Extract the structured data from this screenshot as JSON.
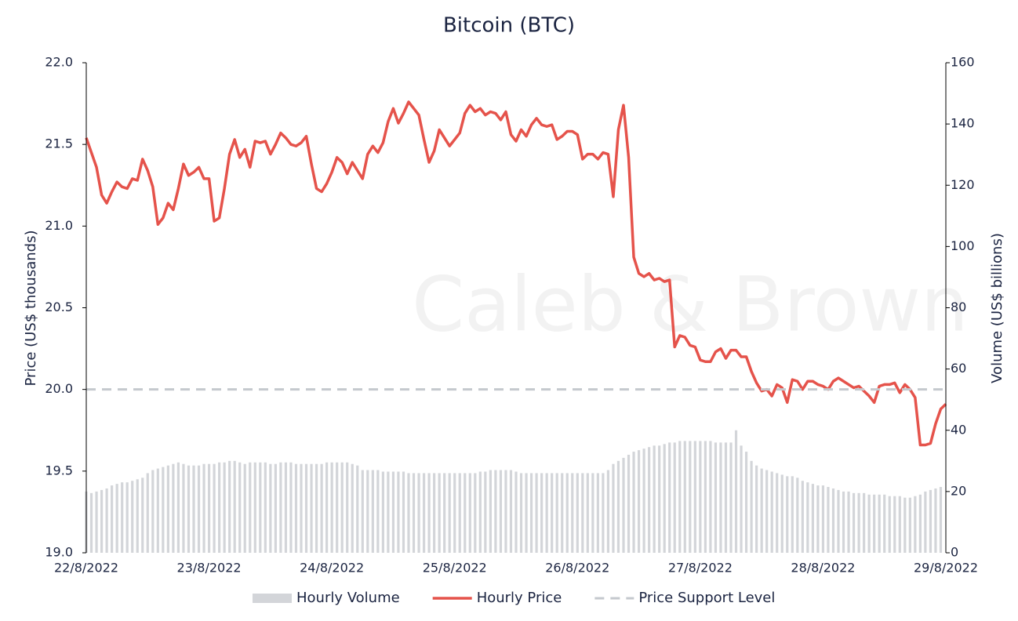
{
  "chart_data": {
    "type": "combo",
    "title": "Bitcoin (BTC)",
    "watermark": "Caleb & Brown",
    "ylabel": "Price (US$ thousands)",
    "y2label": "Volume (US$ billions)",
    "xlim": [
      0,
      168
    ],
    "xticks": [
      {
        "value": 0,
        "label": "22/8/2022"
      },
      {
        "value": 24,
        "label": "23/8/2022"
      },
      {
        "value": 48,
        "label": "24/8/2022"
      },
      {
        "value": 72,
        "label": "25/8/2022"
      },
      {
        "value": 96,
        "label": "26/8/2022"
      },
      {
        "value": 120,
        "label": "27/8/2022"
      },
      {
        "value": 144,
        "label": "28/8/2022"
      },
      {
        "value": 168,
        "label": "29/8/2022"
      }
    ],
    "ylim": [
      19,
      22
    ],
    "yticks": [
      {
        "value": 19,
        "label": "19.0"
      },
      {
        "value": 19.5,
        "label": "19.5"
      },
      {
        "value": 20,
        "label": "20.0"
      },
      {
        "value": 20.5,
        "label": "20.5"
      },
      {
        "value": 21,
        "label": "21.0"
      },
      {
        "value": 21.5,
        "label": "21.5"
      },
      {
        "value": 22,
        "label": "22.0"
      }
    ],
    "y2lim": [
      0,
      160
    ],
    "y2ticks": [
      0,
      20,
      40,
      60,
      80,
      100,
      120,
      140,
      160
    ],
    "series": [
      {
        "name": "Hourly Volume",
        "type": "bar",
        "axis": "y2",
        "color": "#d3d5d9",
        "values": [
          20,
          19.5,
          20,
          20.5,
          21,
          22,
          22.5,
          23,
          23,
          23.5,
          24,
          24.5,
          26,
          27,
          27.5,
          28,
          28.5,
          29,
          29.5,
          29,
          28.5,
          28.5,
          28.5,
          29,
          29,
          29,
          29.5,
          29.5,
          30,
          30,
          29.5,
          29,
          29.5,
          29.5,
          29.5,
          29.5,
          29,
          29,
          29.5,
          29.5,
          29.5,
          29,
          29,
          29,
          29,
          29,
          29,
          29.5,
          29.5,
          29.5,
          29.5,
          29.5,
          29,
          28.5,
          27,
          27,
          27,
          27,
          26.5,
          26.5,
          26.5,
          26.5,
          26.5,
          26,
          26,
          26,
          26,
          26,
          26,
          26,
          26,
          26,
          26,
          26,
          26,
          26,
          26,
          26.5,
          26.5,
          27,
          27,
          27,
          27,
          27,
          26.5,
          26,
          26,
          26,
          26,
          26,
          26,
          26,
          26,
          26,
          26,
          26,
          26,
          26,
          26,
          26,
          26,
          26,
          27,
          29,
          30,
          31,
          32,
          33,
          33.5,
          34,
          34.5,
          35,
          35,
          35.5,
          36,
          36,
          36.5,
          36.5,
          36.5,
          36.5,
          36.5,
          36.5,
          36.5,
          36,
          36,
          36,
          36,
          40,
          35,
          33,
          30,
          28.5,
          27.5,
          27,
          26.5,
          26,
          25.5,
          25,
          25,
          24.5,
          23.5,
          23,
          22.5,
          22,
          22,
          21.5,
          21,
          20.5,
          20,
          20,
          19.5,
          19.5,
          19.5,
          19,
          19,
          19,
          19,
          18.5,
          18.5,
          18.5,
          18,
          18,
          18.5,
          19,
          20,
          20.5,
          21,
          21.5
        ]
      },
      {
        "name": "Hourly Price",
        "type": "line",
        "color": "#e5534b",
        "values": [
          21.54,
          21.45,
          21.36,
          21.19,
          21.14,
          21.21,
          21.27,
          21.24,
          21.23,
          21.29,
          21.28,
          21.41,
          21.34,
          21.24,
          21.01,
          21.05,
          21.14,
          21.1,
          21.23,
          21.38,
          21.31,
          21.33,
          21.36,
          21.29,
          21.29,
          21.03,
          21.05,
          21.23,
          21.44,
          21.53,
          21.42,
          21.47,
          21.36,
          21.52,
          21.51,
          21.52,
          21.44,
          21.5,
          21.57,
          21.54,
          21.5,
          21.49,
          21.51,
          21.55,
          21.38,
          21.23,
          21.21,
          21.26,
          21.33,
          21.42,
          21.39,
          21.32,
          21.39,
          21.34,
          21.29,
          21.44,
          21.49,
          21.45,
          21.51,
          21.64,
          21.72,
          21.63,
          21.69,
          21.76,
          21.72,
          21.68,
          21.53,
          21.39,
          21.46,
          21.59,
          21.54,
          21.49,
          21.53,
          21.57,
          21.69,
          21.74,
          21.7,
          21.72,
          21.68,
          21.7,
          21.69,
          21.65,
          21.7,
          21.56,
          21.52,
          21.59,
          21.55,
          21.62,
          21.66,
          21.62,
          21.61,
          21.62,
          21.53,
          21.55,
          21.58,
          21.58,
          21.56,
          21.41,
          21.44,
          21.44,
          21.41,
          21.45,
          21.44,
          21.18,
          21.59,
          21.74,
          21.42,
          20.81,
          20.71,
          20.69,
          20.71,
          20.67,
          20.68,
          20.66,
          20.67,
          20.26,
          20.33,
          20.32,
          20.27,
          20.26,
          20.18,
          20.17,
          20.17,
          20.23,
          20.25,
          20.19,
          20.24,
          20.24,
          20.2,
          20.2,
          20.11,
          20.04,
          19.99,
          20.0,
          19.96,
          20.03,
          20.01,
          19.92,
          20.06,
          20.05,
          20.0,
          20.05,
          20.05,
          20.03,
          20.02,
          20.0,
          20.05,
          20.07,
          20.05,
          20.03,
          20.01,
          20.02,
          19.99,
          19.96,
          19.92,
          20.02,
          20.03,
          20.03,
          20.04,
          19.98,
          20.03,
          20.0,
          19.95,
          19.66,
          19.66,
          19.67,
          19.79,
          19.88,
          19.91
        ]
      }
    ],
    "hlines": [
      {
        "name": "Price Support Level",
        "value": 20,
        "color": "#c5c9ce"
      }
    ]
  }
}
